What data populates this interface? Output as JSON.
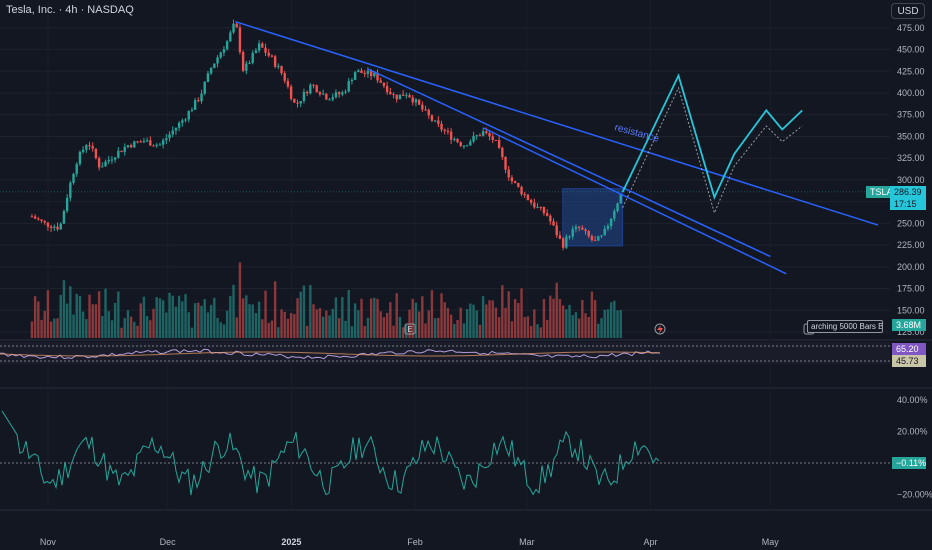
{
  "header": {
    "symbol_title": "Tesla, Inc. · 4h · NASDAQ",
    "currency": "USD"
  },
  "price_tags": {
    "ticker": "TSLA",
    "last_price": "286.39",
    "countdown": "17:15",
    "volume": "3.68M",
    "rsi_a": "65.20",
    "rsi_b": "45.73",
    "osc": "−0.11%"
  },
  "status": {
    "loading_text": "arching 5000 Bars Back"
  },
  "annotation": {
    "resistance_label": "resistance"
  },
  "colors": {
    "background": "#131722",
    "up": "#26a69a",
    "down": "#ef5350",
    "trendline": "#2962ff",
    "projection": "#26c6da",
    "rsi_line": "#b39ddb",
    "osc_line": "#26a69a",
    "highlight_box": "#1e3a6e"
  },
  "markers": {
    "earnings_1": "E",
    "earnings_2": "E"
  },
  "chart_data": [
    {
      "type": "line",
      "title": "Tesla, Inc. · 4h · NASDAQ",
      "x_ticks": [
        "Nov",
        "Dec",
        "2025",
        "Feb",
        "Mar",
        "Apr",
        "May"
      ],
      "y_ticks": [
        125,
        150,
        175,
        200,
        225,
        250,
        275,
        300,
        325,
        350,
        375,
        400,
        425,
        450,
        475
      ],
      "ylim": [
        125,
        490
      ],
      "price_path": [
        [
          "2024-10-28",
          258
        ],
        [
          "2024-10-31",
          250
        ],
        [
          "2024-11-04",
          245
        ],
        [
          "2024-11-06",
          285
        ],
        [
          "2024-11-08",
          320
        ],
        [
          "2024-11-11",
          345
        ],
        [
          "2024-11-14",
          315
        ],
        [
          "2024-11-18",
          330
        ],
        [
          "2024-11-21",
          340
        ],
        [
          "2024-11-25",
          345
        ],
        [
          "2024-11-29",
          340
        ],
        [
          "2024-12-02",
          355
        ],
        [
          "2024-12-05",
          370
        ],
        [
          "2024-12-09",
          395
        ],
        [
          "2024-12-12",
          430
        ],
        [
          "2024-12-16",
          460
        ],
        [
          "2024-12-18",
          482
        ],
        [
          "2024-12-20",
          425
        ],
        [
          "2024-12-24",
          455
        ],
        [
          "2024-12-27",
          440
        ],
        [
          "2024-12-30",
          420
        ],
        [
          "2025-01-02",
          385
        ],
        [
          "2025-01-06",
          410
        ],
        [
          "2025-01-10",
          395
        ],
        [
          "2025-01-14",
          400
        ],
        [
          "2025-01-17",
          425
        ],
        [
          "2025-01-22",
          420
        ],
        [
          "2025-01-27",
          395
        ],
        [
          "2025-01-30",
          400
        ],
        [
          "2025-02-03",
          380
        ],
        [
          "2025-02-06",
          365
        ],
        [
          "2025-02-10",
          350
        ],
        [
          "2025-02-13",
          340
        ],
        [
          "2025-02-18",
          355
        ],
        [
          "2025-02-21",
          345
        ],
        [
          "2025-02-25",
          300
        ],
        [
          "2025-02-28",
          285
        ],
        [
          "2025-03-03",
          270
        ],
        [
          "2025-03-06",
          260
        ],
        [
          "2025-03-10",
          225
        ],
        [
          "2025-03-12",
          240
        ],
        [
          "2025-03-14",
          245
        ],
        [
          "2025-03-18",
          228
        ],
        [
          "2025-03-20",
          235
        ],
        [
          "2025-03-21",
          245
        ],
        [
          "2025-03-24",
          278
        ],
        [
          "2025-03-25",
          286.39
        ]
      ],
      "projection_path": [
        [
          "2025-03-25",
          286
        ],
        [
          "2025-04-08",
          420
        ],
        [
          "2025-04-17",
          280
        ],
        [
          "2025-04-22",
          330
        ],
        [
          "2025-04-30",
          380
        ],
        [
          "2025-05-04",
          358
        ],
        [
          "2025-05-09",
          380
        ]
      ],
      "trendlines": [
        {
          "name": "resistance",
          "from": [
            "2024-12-18",
            482
          ],
          "to": [
            "2025-05-28",
            248
          ]
        },
        {
          "from": [
            "2025-01-20",
            428
          ],
          "to": [
            "2025-05-01",
            212
          ]
        },
        {
          "from": [
            "2025-02-18",
            360
          ],
          "to": [
            "2025-05-05",
            192
          ]
        }
      ],
      "highlight_range": {
        "from": "2025-03-10",
        "to": "2025-03-25",
        "low": 224,
        "high": 290
      }
    },
    {
      "type": "bar",
      "title": "Volume",
      "last_value": "3.68M"
    },
    {
      "type": "line",
      "title": "RSI",
      "values_shown": [
        65.2,
        45.73
      ]
    },
    {
      "type": "line",
      "title": "Oscillator (%)",
      "y_ticks": [
        "40.00%",
        "20.00%",
        "−20.00%"
      ],
      "last_value": "−0.11%"
    }
  ]
}
